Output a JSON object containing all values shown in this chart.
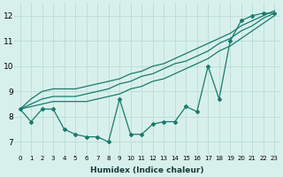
{
  "xlabel": "Humidex (Indice chaleur)",
  "ylabel": "",
  "x_values": [
    0,
    1,
    2,
    3,
    4,
    5,
    6,
    7,
    8,
    9,
    10,
    11,
    12,
    13,
    14,
    15,
    16,
    17,
    18,
    19,
    20,
    21,
    22,
    23
  ],
  "line1": [
    8.3,
    7.8,
    8.3,
    8.3,
    7.5,
    7.3,
    7.2,
    7.2,
    7.0,
    8.7,
    7.3,
    7.3,
    7.7,
    7.8,
    7.8,
    8.4,
    8.2,
    10.0,
    8.7,
    11.0,
    11.8,
    12.0,
    12.1,
    12.1
  ],
  "line2": [
    8.3,
    8.4,
    8.5,
    8.6,
    8.6,
    8.6,
    8.6,
    8.7,
    8.8,
    8.9,
    9.1,
    9.2,
    9.4,
    9.5,
    9.7,
    9.9,
    10.1,
    10.3,
    10.6,
    10.8,
    11.1,
    11.4,
    11.7,
    12.0
  ],
  "line3": [
    8.3,
    8.5,
    8.7,
    8.8,
    8.8,
    8.8,
    8.9,
    9.0,
    9.1,
    9.3,
    9.4,
    9.6,
    9.7,
    9.9,
    10.1,
    10.2,
    10.4,
    10.6,
    10.9,
    11.1,
    11.4,
    11.6,
    11.9,
    12.1
  ],
  "line4": [
    8.3,
    8.7,
    9.0,
    9.1,
    9.1,
    9.1,
    9.2,
    9.3,
    9.4,
    9.5,
    9.7,
    9.8,
    10.0,
    10.1,
    10.3,
    10.5,
    10.7,
    10.9,
    11.1,
    11.3,
    11.6,
    11.8,
    12.0,
    12.2
  ],
  "line_color": "#1a7a6e",
  "bg_color": "#d8f0ec",
  "grid_color": "#b8dcd6",
  "ylim": [
    6.5,
    12.5
  ],
  "xlim": [
    -0.5,
    23.5
  ],
  "yticks": [
    7,
    8,
    9,
    10,
    11,
    12
  ],
  "xticks": [
    0,
    1,
    2,
    3,
    4,
    5,
    6,
    7,
    8,
    9,
    10,
    11,
    12,
    13,
    14,
    15,
    16,
    17,
    18,
    19,
    20,
    21,
    22,
    23
  ],
  "marker": "D",
  "marker_size": 2.0,
  "linewidth": 0.9
}
